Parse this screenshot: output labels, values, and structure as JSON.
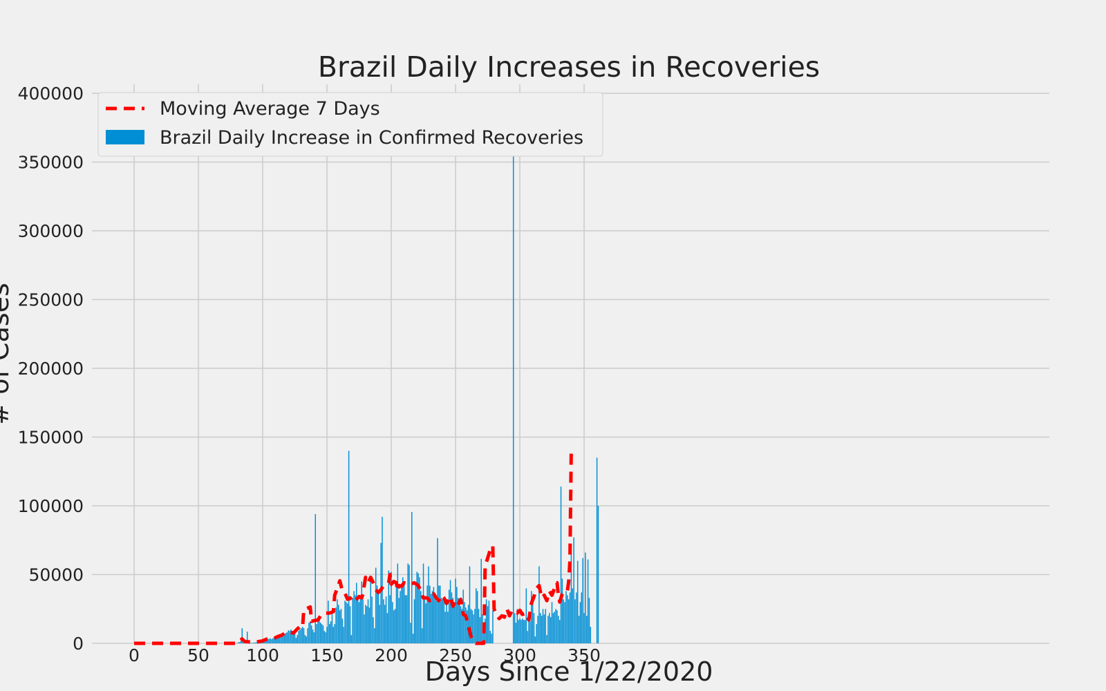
{
  "chart_data": {
    "type": "bar",
    "title": "Brazil Daily Increases in Recoveries",
    "xlabel": "Days Since 1/22/2020",
    "ylabel": "# of Cases",
    "xlim": [
      -5,
      355
    ],
    "ylim": [
      0,
      406000
    ],
    "xticks": [
      0,
      50,
      100,
      150,
      200,
      250,
      300,
      350
    ],
    "yticks": [
      0,
      50000,
      100000,
      150000,
      200000,
      250000,
      300000,
      350000,
      400000
    ],
    "grid": true,
    "legend_position": "top-left",
    "series": [
      {
        "name": "Brazil Daily Increase in Confirmed Recoveries",
        "kind": "bar",
        "color": "#008fd5",
        "x_start": 0,
        "values": [
          0,
          0,
          0,
          0,
          0,
          0,
          0,
          0,
          0,
          0,
          0,
          0,
          0,
          0,
          0,
          0,
          0,
          0,
          0,
          0,
          0,
          0,
          0,
          0,
          0,
          0,
          0,
          0,
          0,
          0,
          0,
          0,
          0,
          0,
          0,
          0,
          0,
          0,
          0,
          0,
          0,
          0,
          0,
          0,
          0,
          0,
          0,
          0,
          0,
          0,
          0,
          0,
          0,
          0,
          0,
          0,
          0,
          0,
          0,
          0,
          0,
          0,
          0,
          0,
          0,
          0,
          0,
          0,
          0,
          0,
          0,
          0,
          0,
          0,
          0,
          0,
          0,
          0,
          0,
          0,
          200,
          600,
          900,
          1500,
          11000,
          500,
          300,
          800,
          8500,
          400,
          500,
          300,
          300,
          500,
          600,
          700,
          800,
          900,
          1100,
          1300,
          1800,
          2200,
          2500,
          2800,
          3000,
          3300,
          3600,
          3000,
          3800,
          4200,
          4500,
          4800,
          5000,
          5300,
          5500,
          6000,
          6500,
          7000,
          7500,
          8000,
          9500,
          9000,
          10000,
          9000,
          8500,
          8000,
          4000,
          6000,
          9000,
          10000,
          11000,
          12000,
          11000,
          6000,
          5000,
          11000,
          15000,
          16000,
          13000,
          10000,
          8000,
          94000,
          14000,
          16000,
          17000,
          15000,
          14000,
          13000,
          9000,
          8000,
          12000,
          31000,
          14000,
          16000,
          24000,
          12000,
          14000,
          26000,
          32000,
          28000,
          24000,
          25000,
          18000,
          12000,
          31000,
          30000,
          29000,
          140000,
          27000,
          6000,
          33000,
          38000,
          35000,
          44000,
          33000,
          30000,
          35000,
          45000,
          32000,
          21000,
          28000,
          27000,
          32000,
          26000,
          47000,
          34000,
          19000,
          11000,
          55000,
          42000,
          38000,
          28000,
          73000,
          92000,
          32000,
          28000,
          34000,
          22000,
          53000,
          35000,
          52000,
          30000,
          24000,
          25000,
          44000,
          58000,
          33000,
          38000,
          41000,
          48000,
          43000,
          35000,
          35000,
          58000,
          57000,
          15000,
          95500,
          7000,
          32000,
          42000,
          52000,
          51000,
          48000,
          38000,
          11000,
          58000,
          34000,
          29000,
          42000,
          56000,
          42000,
          36000,
          38000,
          41000,
          33000,
          31000,
          76500,
          42000,
          42000,
          33000,
          32000,
          33000,
          23000,
          28000,
          23000,
          39000,
          46000,
          37000,
          33000,
          30000,
          47000,
          41000,
          33000,
          31000,
          27000,
          25000,
          39000,
          30000,
          26000,
          24000,
          28000,
          56000,
          25000,
          24000,
          21000,
          25000,
          40000,
          38000,
          25000,
          19000,
          61500,
          21000,
          14000,
          18000,
          32000,
          27000,
          31000,
          9000,
          7000,
          24000,
          0,
          0,
          0,
          0,
          0,
          0,
          0,
          0,
          0,
          0,
          0,
          0,
          0,
          0,
          0,
          388000,
          22000,
          15000,
          25000,
          17000,
          18000,
          17000,
          18000,
          17000,
          17000,
          40000,
          9000,
          20000,
          16000,
          38000,
          32000,
          22000,
          5000,
          14000,
          20000,
          56000,
          22000,
          20000,
          25000,
          21000,
          25000,
          6000,
          20000,
          22000,
          19000,
          30000,
          22000,
          23000,
          25000,
          24000,
          20000,
          17000,
          114000,
          47000,
          32000,
          30000,
          38000,
          35000,
          32000,
          37000,
          68000,
          40000,
          77000,
          32000,
          37000,
          60000,
          20000,
          30000,
          37000,
          62000,
          22000,
          66000,
          20000,
          61000,
          33000,
          12000,
          0,
          0,
          0,
          0,
          135000,
          100000
        ]
      },
      {
        "name": "Moving Average 7 Days",
        "kind": "line",
        "style": "dashed",
        "color": "#ff0000",
        "points": [
          [
            0,
            0
          ],
          [
            80,
            0
          ],
          [
            81,
            1500
          ],
          [
            83,
            2500
          ],
          [
            84,
            3200
          ],
          [
            85,
            2200
          ],
          [
            86,
            1300
          ],
          [
            87,
            1200
          ],
          [
            88,
            1200
          ],
          [
            90,
            1000
          ],
          [
            92,
            800
          ],
          [
            95,
            900
          ],
          [
            100,
            1800
          ],
          [
            103,
            3000
          ],
          [
            106,
            3200
          ],
          [
            108,
            3200
          ],
          [
            112,
            5000
          ],
          [
            115,
            6000
          ],
          [
            118,
            8000
          ],
          [
            121,
            8000
          ],
          [
            124,
            7500
          ],
          [
            127,
            10500
          ],
          [
            129,
            12000
          ],
          [
            131,
            11500
          ],
          [
            132,
            24500
          ],
          [
            136,
            26000
          ],
          [
            137,
            26500
          ],
          [
            138,
            16000
          ],
          [
            140,
            16500
          ],
          [
            143,
            17000
          ],
          [
            145,
            20000
          ],
          [
            148,
            22000
          ],
          [
            152,
            22000
          ],
          [
            155,
            23000
          ],
          [
            156,
            35000
          ],
          [
            158,
            40000
          ],
          [
            160,
            45500
          ],
          [
            162,
            38000
          ],
          [
            164,
            36500
          ],
          [
            166,
            32000
          ],
          [
            168,
            33000
          ],
          [
            170,
            30000
          ],
          [
            172,
            31000
          ],
          [
            175,
            34000
          ],
          [
            177,
            33000
          ],
          [
            178,
            36000
          ],
          [
            180,
            48000
          ],
          [
            182,
            44000
          ],
          [
            184,
            48000
          ],
          [
            186,
            44000
          ],
          [
            188,
            39000
          ],
          [
            190,
            37000
          ],
          [
            192,
            39000
          ],
          [
            194,
            42000
          ],
          [
            196,
            43000
          ],
          [
            198,
            44000
          ],
          [
            199,
            50000
          ],
          [
            200,
            43000
          ],
          [
            202,
            45000
          ],
          [
            204,
            44000
          ],
          [
            205,
            38000
          ],
          [
            206,
            42000
          ],
          [
            208,
            41500
          ],
          [
            210,
            44000
          ],
          [
            213,
            43000
          ],
          [
            215,
            43000
          ],
          [
            218,
            44000
          ],
          [
            221,
            42000
          ],
          [
            223,
            38000
          ],
          [
            225,
            33000
          ],
          [
            228,
            33000
          ],
          [
            230,
            31000
          ],
          [
            233,
            36000
          ],
          [
            235,
            33000
          ],
          [
            237,
            31000
          ],
          [
            239,
            35000
          ],
          [
            241,
            33000
          ],
          [
            243,
            29000
          ],
          [
            246,
            34000
          ],
          [
            248,
            27000
          ],
          [
            250,
            31000
          ],
          [
            252,
            28000
          ],
          [
            254,
            32000
          ],
          [
            256,
            21000
          ],
          [
            258,
            20000
          ],
          [
            260,
            13000
          ],
          [
            262,
            5000
          ],
          [
            264,
            1500
          ],
          [
            266,
            0
          ],
          [
            272,
            0
          ],
          [
            273,
            56000
          ],
          [
            275,
            62000
          ],
          [
            277,
            68000
          ],
          [
            279,
            71000
          ],
          [
            280,
            25000
          ],
          [
            282,
            20000
          ],
          [
            284,
            18000
          ],
          [
            286,
            20000
          ],
          [
            288,
            19000
          ],
          [
            290,
            25000
          ],
          [
            292,
            20000
          ],
          [
            294,
            24000
          ],
          [
            296,
            23000
          ],
          [
            298,
            22000
          ],
          [
            300,
            24000
          ],
          [
            302,
            21000
          ],
          [
            305,
            22000
          ],
          [
            307,
            17000
          ],
          [
            309,
            29000
          ],
          [
            311,
            34000
          ],
          [
            313,
            40000
          ],
          [
            315,
            42000
          ],
          [
            317,
            33000
          ],
          [
            319,
            35000
          ],
          [
            321,
            31000
          ],
          [
            323,
            38000
          ],
          [
            325,
            35000
          ],
          [
            327,
            40000
          ],
          [
            328,
            44000
          ],
          [
            329,
            44000
          ],
          [
            330,
            35000
          ],
          [
            331,
            30000
          ],
          [
            333,
            36000
          ],
          [
            335,
            38000
          ],
          [
            337,
            38000
          ],
          [
            338,
            45000
          ],
          [
            339,
            60000
          ],
          [
            340,
            140000
          ]
        ]
      }
    ]
  }
}
